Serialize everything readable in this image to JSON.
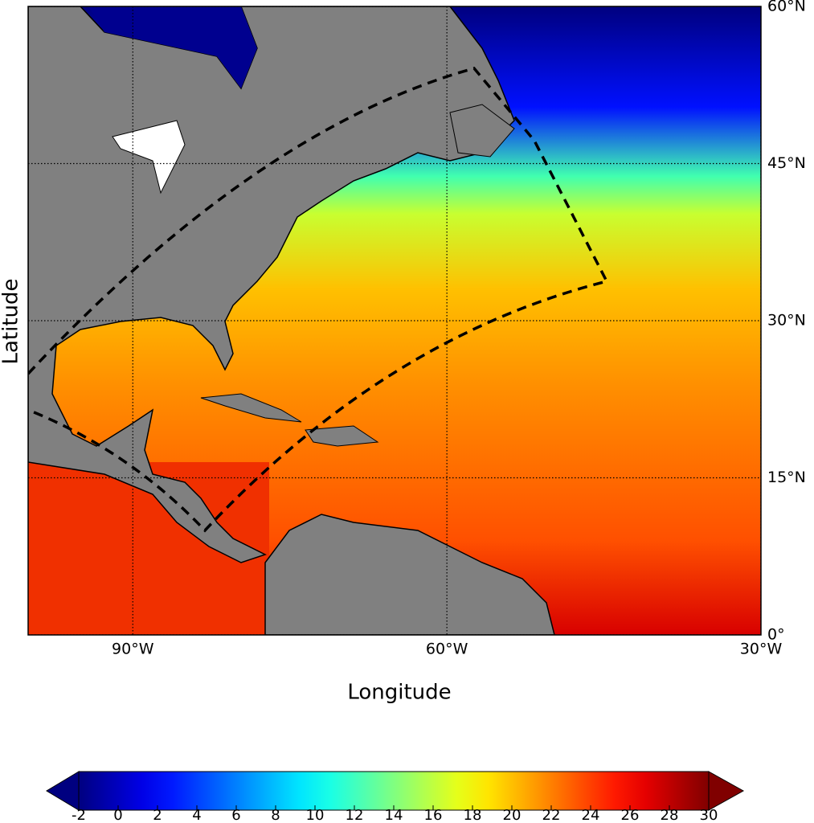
{
  "map": {
    "x_label": "Longitude",
    "y_label": "Latitude",
    "xlim": [
      -100,
      -30
    ],
    "xticks": [
      {
        "value": -90,
        "label": "90°W"
      },
      {
        "value": -60,
        "label": "60°W"
      },
      {
        "value": -30,
        "label": "30°W"
      }
    ],
    "ylim": [
      0,
      60
    ],
    "yticks": [
      {
        "value": 0,
        "label": "0°"
      },
      {
        "value": 15,
        "label": "15°N"
      },
      {
        "value": 30,
        "label": "30°N"
      },
      {
        "value": 45,
        "label": "45°N"
      },
      {
        "value": 60,
        "label": "60°N"
      }
    ],
    "grid": true,
    "colorbar": {
      "colormap": "jet",
      "lim": [
        -2,
        30
      ],
      "ticks": [
        -2,
        0,
        2,
        4,
        6,
        8,
        10,
        12,
        14,
        16,
        18,
        20,
        22,
        24,
        26,
        28,
        30
      ],
      "extend": "both"
    }
  }
}
